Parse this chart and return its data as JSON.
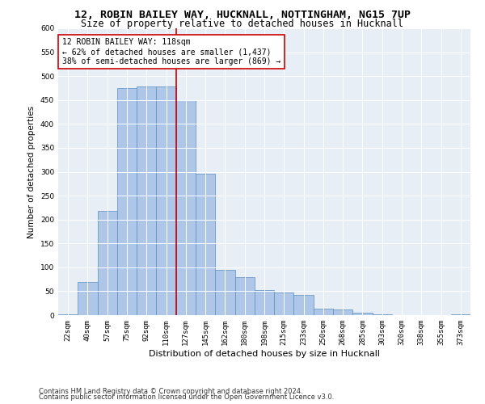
{
  "title1": "12, ROBIN BAILEY WAY, HUCKNALL, NOTTINGHAM, NG15 7UP",
  "title2": "Size of property relative to detached houses in Hucknall",
  "xlabel": "Distribution of detached houses by size in Hucknall",
  "ylabel": "Number of detached properties",
  "categories": [
    "22sqm",
    "40sqm",
    "57sqm",
    "75sqm",
    "92sqm",
    "110sqm",
    "127sqm",
    "145sqm",
    "162sqm",
    "180sqm",
    "198sqm",
    "215sqm",
    "233sqm",
    "250sqm",
    "268sqm",
    "285sqm",
    "303sqm",
    "320sqm",
    "338sqm",
    "355sqm",
    "373sqm"
  ],
  "values": [
    2,
    70,
    218,
    475,
    478,
    478,
    450,
    295,
    95,
    80,
    53,
    47,
    42,
    13,
    12,
    5,
    1,
    0,
    0,
    0,
    2
  ],
  "bar_color": "#aec6e8",
  "bar_edge_color": "#5a8fc0",
  "vline_x": 5.5,
  "vline_color": "#cc0000",
  "annotation_line1": "12 ROBIN BAILEY WAY: 118sqm",
  "annotation_line2": "← 62% of detached houses are smaller (1,437)",
  "annotation_line3": "38% of semi-detached houses are larger (869) →",
  "annotation_box_color": "#ffffff",
  "annotation_box_edge": "#cc0000",
  "ylim": [
    0,
    600
  ],
  "yticks": [
    0,
    50,
    100,
    150,
    200,
    250,
    300,
    350,
    400,
    450,
    500,
    550,
    600
  ],
  "bg_color": "#e8eef5",
  "fig_bg_color": "#ffffff",
  "footer1": "Contains HM Land Registry data © Crown copyright and database right 2024.",
  "footer2": "Contains public sector information licensed under the Open Government Licence v3.0.",
  "title1_fontsize": 9.5,
  "title2_fontsize": 8.5,
  "xlabel_fontsize": 8,
  "ylabel_fontsize": 7.5,
  "tick_fontsize": 6.5,
  "annotation_fontsize": 7,
  "footer_fontsize": 6
}
